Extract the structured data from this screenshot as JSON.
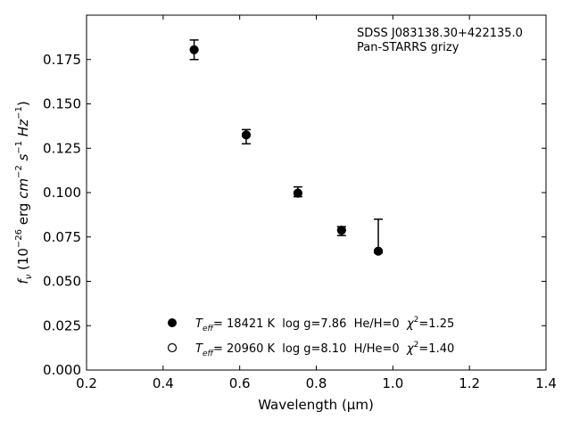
{
  "chart_data": {
    "type": "scatter",
    "xlabel": "Wavelength (μm)",
    "ylabel": "f_ν (10^−26 erg cm^−2 s^−1 Hz^−1)",
    "xlim": [
      0.2,
      1.4
    ],
    "ylim": [
      0.0,
      0.2
    ],
    "xticks": [
      0.2,
      0.4,
      0.6,
      0.8,
      1.0,
      1.2,
      1.4
    ],
    "xtick_labels": [
      "0.2",
      "0.4",
      "0.6",
      "0.8",
      "1.0",
      "1.2",
      "1.4"
    ],
    "yticks": [
      0.0,
      0.025,
      0.05,
      0.075,
      0.1,
      0.125,
      0.15,
      0.175
    ],
    "ytick_labels": [
      "0.000",
      "0.025",
      "0.050",
      "0.075",
      "0.100",
      "0.125",
      "0.150",
      "0.175"
    ],
    "grid": false,
    "annotations": [
      "SDSS J083138.30+422135.0",
      "Pan-STARRS grizy"
    ],
    "observed": {
      "x": [
        0.481,
        0.617,
        0.752,
        0.866,
        0.962
      ],
      "y": [
        0.1805,
        0.1325,
        0.0997,
        0.0788,
        0.067
      ],
      "yerr_low": [
        0.0055,
        0.005,
        0.002,
        0.003,
        0.001
      ],
      "yerr_high": [
        0.0055,
        0.003,
        0.0035,
        0.002,
        0.018
      ]
    },
    "series": [
      {
        "marker": "filled",
        "legend_text": {
          "teff_symbol": "T",
          "teff_sub": "eff",
          "rest": "= 18421 K  log g=7.86  He/H=0  ",
          "chi": "χ",
          "chi_sup": "2",
          "chi_val": "=1.25"
        },
        "x": [
          0.481,
          0.617,
          0.752,
          0.866,
          0.962
        ],
        "y": [
          0.1805,
          0.1325,
          0.0997,
          0.0788,
          0.067
        ]
      },
      {
        "marker": "open",
        "legend_text": {
          "teff_symbol": "T",
          "teff_sub": "eff",
          "rest": "= 20960 K  log g=8.10  H/He=0  ",
          "chi": "χ",
          "chi_sup": "2",
          "chi_val": "=1.40"
        },
        "x": [
          0.481,
          0.617,
          0.752,
          0.866,
          0.962
        ],
        "y": [
          0.1805,
          0.1325,
          0.0997,
          0.0788,
          0.067
        ]
      }
    ],
    "legend_location": "lower-center"
  }
}
